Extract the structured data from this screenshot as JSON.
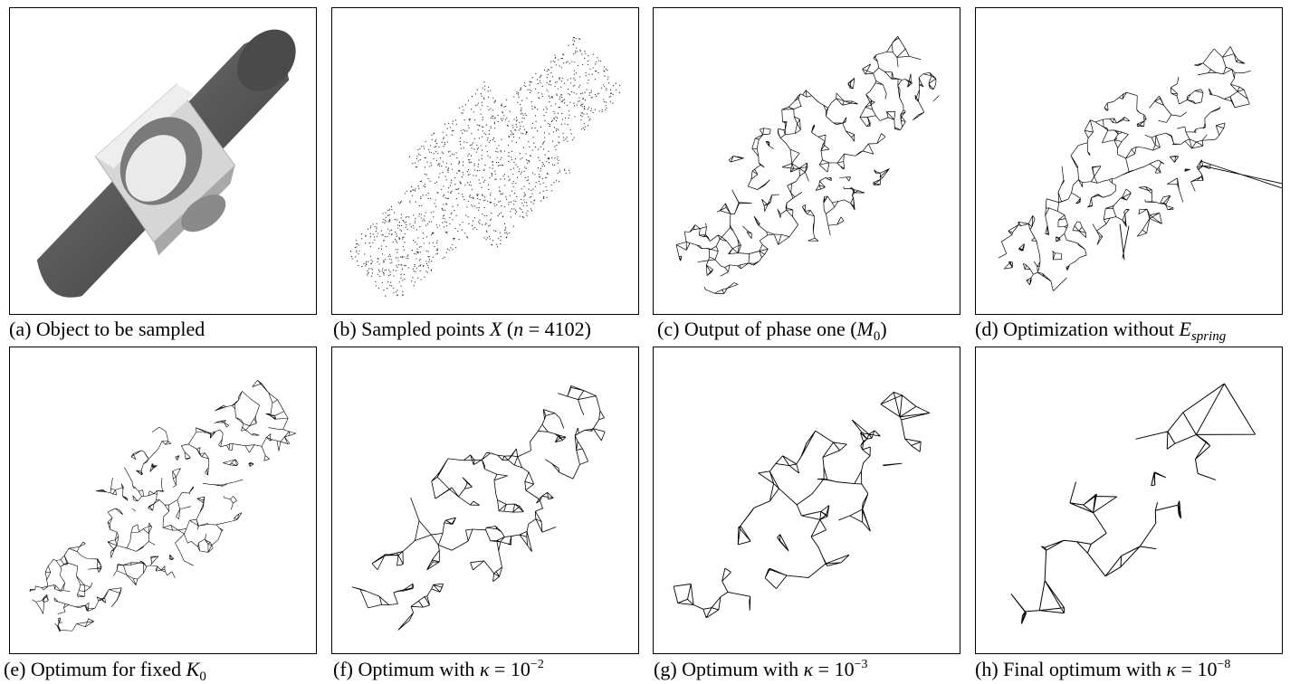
{
  "panels": [
    {
      "id": "a",
      "tag": "(a)",
      "text": "Object to be sampled"
    },
    {
      "id": "b",
      "tag": "(b)",
      "text_pre": "Sampled points",
      "var": "X",
      "paren_open": "(",
      "n_var": "n",
      "eq": "=",
      "n_value": "4102",
      "paren_close": ")"
    },
    {
      "id": "c",
      "tag": "(c)",
      "text_pre": "Output of phase one",
      "paren_open": "(",
      "m_var": "M",
      "m_sub": "0",
      "paren_close": ")"
    },
    {
      "id": "d",
      "tag": "(d)",
      "text_pre": "Optimization without",
      "e_var": "E",
      "e_sub": "spring"
    },
    {
      "id": "e",
      "tag": "(e)",
      "text_pre": "Optimum for fixed",
      "k_var": "K",
      "k_sub": "0"
    },
    {
      "id": "f",
      "tag": "(f)",
      "text_pre": "Optimum with",
      "kappa": "κ",
      "eq": "=",
      "base": "10",
      "exp": "−2"
    },
    {
      "id": "g",
      "tag": "(g)",
      "text_pre": "Optimum with",
      "kappa": "κ",
      "eq": "=",
      "base": "10",
      "exp": "−3"
    },
    {
      "id": "h",
      "tag": "(h)",
      "text_pre": "Final optimum with",
      "kappa": "κ",
      "eq": "=",
      "base": "10",
      "exp": "−8"
    }
  ],
  "colors": {
    "frame": "#000000",
    "solid_dark": "#5f5f5f",
    "solid_light": "#c8c8c8",
    "cube_face": "#d9d9d9",
    "mesh": "#000000"
  }
}
